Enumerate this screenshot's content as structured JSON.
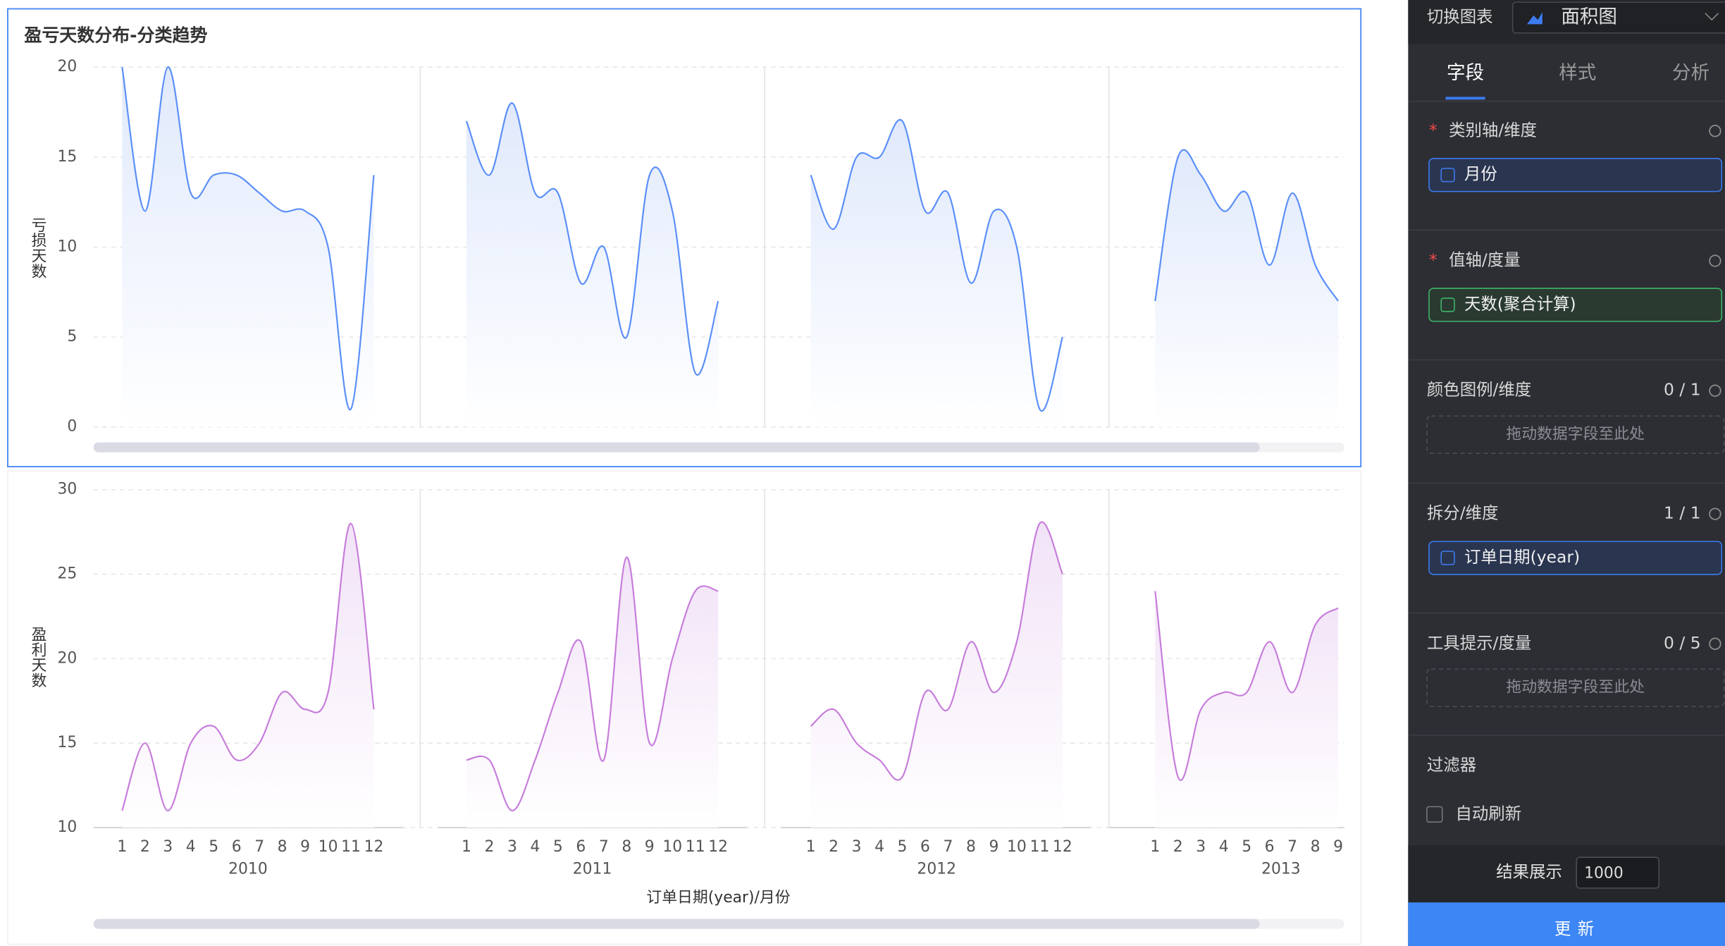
{
  "chart_data": [
    {
      "type": "area",
      "title": "盈亏天数分布-分类趋势",
      "y_label": "亏损天数",
      "ylim": [
        0,
        20
      ],
      "yticks": [
        0,
        5,
        10,
        15,
        20
      ],
      "color": "#5b8ff9",
      "grid": true,
      "facets": [
        {
          "values": [
            20,
            12,
            20,
            13,
            14,
            14,
            13,
            12,
            12,
            10,
            1,
            14
          ]
        },
        {
          "values": [
            17,
            14,
            18,
            13,
            13,
            8,
            10,
            5,
            14,
            12,
            3,
            7
          ]
        },
        {
          "values": [
            14,
            11,
            15,
            15,
            17,
            12,
            13,
            8,
            12,
            10,
            1,
            5
          ]
        },
        {
          "values": [
            7,
            15,
            14,
            12,
            13,
            9,
            13,
            9,
            7
          ]
        }
      ]
    },
    {
      "type": "area",
      "y_label": "盈利天数",
      "x_label": "订单日期(year)/月份",
      "ylim": [
        10,
        30
      ],
      "yticks": [
        10,
        15,
        20,
        25,
        30
      ],
      "color": "#c77ddb",
      "grid": true,
      "facets": [
        {
          "label": "2010",
          "categories": [
            "1",
            "2",
            "3",
            "4",
            "5",
            "6",
            "7",
            "8",
            "9",
            "10",
            "11",
            "12"
          ],
          "values": [
            11,
            15,
            11,
            15,
            16,
            14,
            15,
            18,
            17,
            18,
            28,
            17
          ]
        },
        {
          "label": "2011",
          "categories": [
            "1",
            "2",
            "3",
            "4",
            "5",
            "6",
            "7",
            "8",
            "9",
            "10",
            "11",
            "12"
          ],
          "values": [
            14,
            14,
            11,
            14,
            18,
            21,
            14,
            26,
            15,
            20,
            24,
            24
          ]
        },
        {
          "label": "2012",
          "categories": [
            "1",
            "2",
            "3",
            "4",
            "5",
            "6",
            "7",
            "8",
            "9",
            "10",
            "11",
            "12"
          ],
          "values": [
            16,
            17,
            15,
            14,
            13,
            18,
            17,
            21,
            18,
            21,
            28,
            25
          ]
        },
        {
          "label": "2013",
          "categories": [
            "1",
            "2",
            "3",
            "4",
            "5",
            "6",
            "7",
            "8",
            "9"
          ],
          "values": [
            24,
            13,
            17,
            18,
            18,
            21,
            18,
            22,
            23
          ]
        }
      ]
    }
  ],
  "panel": {
    "switch_label": "切换图表",
    "chart_type": "面积图",
    "tabs": [
      "字段",
      "样式",
      "分析"
    ],
    "sections": [
      {
        "required": "*",
        "title": "类别轴/维度",
        "field": "月份"
      },
      {
        "required": "*",
        "title": "值轴/度量",
        "field": "天数(聚合计算)"
      },
      {
        "title": "颜色图例/维度",
        "count": "0 / 1",
        "placeholder": "拖动数据字段至此处"
      },
      {
        "title": "拆分/维度",
        "count": "1 / 1",
        "field": "订单日期(year)"
      },
      {
        "title": "工具提示/度量",
        "count": "0 / 5",
        "placeholder": "拖动数据字段至此处"
      },
      {
        "title": "过滤器",
        "option": "自动刷新"
      }
    ],
    "result_label": "结果展示",
    "result_value": "1000",
    "button": "更新"
  }
}
